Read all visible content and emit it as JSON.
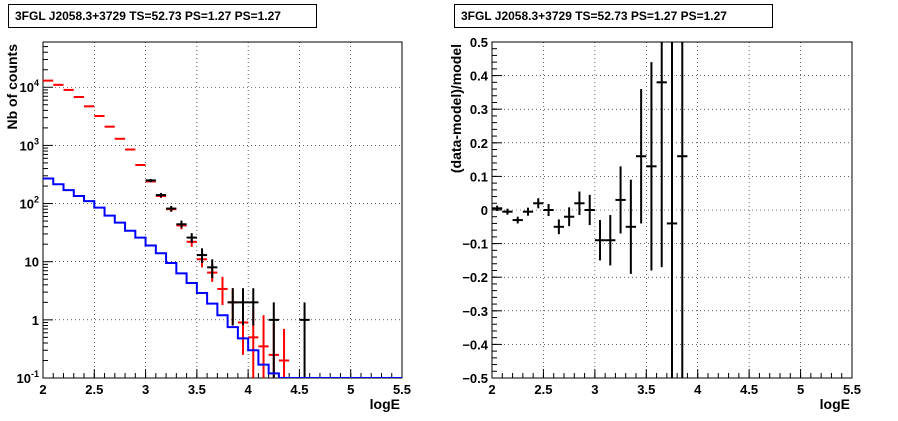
{
  "chart_data": [
    {
      "type": "line",
      "title": "3FGL J2058.3+3729 TS=52.73 PS=1.27 PS=1.27",
      "xlabel": "logE",
      "ylabel": "Nb of counts",
      "xlim": [
        2,
        5.5
      ],
      "ylim": [
        0.1,
        60000
      ],
      "yscale": "log",
      "grid": true,
      "xticks": [
        "2",
        "2.5",
        "3",
        "3.5",
        "4",
        "4.5",
        "5",
        "5.5"
      ],
      "yticks": [
        {
          "value": 0.1,
          "label": "10^-1"
        },
        {
          "value": 1,
          "label": "1"
        },
        {
          "value": 10,
          "label": "10"
        },
        {
          "value": 100,
          "label": "10^2"
        },
        {
          "value": 1000,
          "label": "10^3"
        },
        {
          "value": 10000,
          "label": "10^4"
        }
      ],
      "series": [
        {
          "color": "#ff0000",
          "style": "errorbar",
          "points": [
            {
              "x": 2.05,
              "y": 13000,
              "ylo": 13000,
              "yhi": 13000
            },
            {
              "x": 2.15,
              "y": 11000,
              "ylo": 11000,
              "yhi": 11000
            },
            {
              "x": 2.25,
              "y": 9000,
              "ylo": 9000,
              "yhi": 9000
            },
            {
              "x": 2.35,
              "y": 6800,
              "ylo": 6800,
              "yhi": 6800
            },
            {
              "x": 2.45,
              "y": 4700,
              "ylo": 4700,
              "yhi": 4700
            },
            {
              "x": 2.55,
              "y": 3200,
              "ylo": 3200,
              "yhi": 3200
            },
            {
              "x": 2.65,
              "y": 2100,
              "ylo": 2100,
              "yhi": 2100
            },
            {
              "x": 2.75,
              "y": 1300,
              "ylo": 1300,
              "yhi": 1300
            },
            {
              "x": 2.85,
              "y": 850,
              "ylo": 850,
              "yhi": 850
            },
            {
              "x": 2.95,
              "y": 460,
              "ylo": 460,
              "yhi": 460
            },
            {
              "x": 3.05,
              "y": 240,
              "ylo": 230,
              "yhi": 250
            },
            {
              "x": 3.15,
              "y": 135,
              "ylo": 125,
              "yhi": 145
            },
            {
              "x": 3.25,
              "y": 80,
              "ylo": 72,
              "yhi": 88
            },
            {
              "x": 3.35,
              "y": 42,
              "ylo": 36,
              "yhi": 48
            },
            {
              "x": 3.45,
              "y": 22,
              "ylo": 18,
              "yhi": 27
            },
            {
              "x": 3.55,
              "y": 11,
              "ylo": 8,
              "yhi": 14
            },
            {
              "x": 3.65,
              "y": 6.5,
              "ylo": 4.5,
              "yhi": 9
            },
            {
              "x": 3.75,
              "y": 3.4,
              "ylo": 1.8,
              "yhi": 5.5
            },
            {
              "x": 3.85,
              "y": 2,
              "ylo": 0.8,
              "yhi": 3.5
            },
            {
              "x": 3.95,
              "y": 0.9,
              "ylo": 0.25,
              "yhi": 2.5
            },
            {
              "x": 4.05,
              "y": 0.5,
              "ylo": 0.1,
              "yhi": 1.5
            },
            {
              "x": 4.15,
              "y": 0.35,
              "ylo": 0.1,
              "yhi": 1.2
            },
            {
              "x": 4.25,
              "y": 0.25,
              "ylo": 0.1,
              "yhi": 0.9
            },
            {
              "x": 4.35,
              "y": 0.2,
              "ylo": 0.1,
              "yhi": 0.7
            }
          ]
        },
        {
          "color": "#000000",
          "style": "errorbar",
          "points": [
            {
              "x": 3.05,
              "y": 250,
              "ylo": 235,
              "yhi": 265
            },
            {
              "x": 3.15,
              "y": 140,
              "ylo": 128,
              "yhi": 152
            },
            {
              "x": 3.25,
              "y": 82,
              "ylo": 73,
              "yhi": 91
            },
            {
              "x": 3.35,
              "y": 44,
              "ylo": 38,
              "yhi": 51
            },
            {
              "x": 3.45,
              "y": 26,
              "ylo": 21,
              "yhi": 31
            },
            {
              "x": 3.55,
              "y": 13,
              "ylo": 9.5,
              "yhi": 17
            },
            {
              "x": 3.65,
              "y": 8,
              "ylo": 5.2,
              "yhi": 11
            },
            {
              "x": 3.85,
              "y": 2,
              "ylo": 0.8,
              "yhi": 3.5
            },
            {
              "x": 3.95,
              "y": 2,
              "ylo": 0.8,
              "yhi": 3.5
            },
            {
              "x": 4.05,
              "y": 2,
              "ylo": 0.8,
              "yhi": 3.5
            },
            {
              "x": 4.25,
              "y": 1,
              "ylo": 0.1,
              "yhi": 2
            },
            {
              "x": 4.55,
              "y": 1,
              "ylo": 0.1,
              "yhi": 2
            }
          ]
        },
        {
          "color": "#0000ff",
          "style": "step",
          "edges": [
            2.0,
            2.1,
            2.2,
            2.3,
            2.4,
            2.5,
            2.6,
            2.7,
            2.8,
            2.9,
            3.0,
            3.1,
            3.2,
            3.3,
            3.4,
            3.5,
            3.6,
            3.7,
            3.8,
            3.9,
            4.0,
            4.1,
            4.2,
            4.3,
            5.5
          ],
          "values": [
            270,
            215,
            170,
            135,
            110,
            85,
            62,
            47,
            34,
            26,
            19,
            14,
            9.5,
            6.3,
            4.3,
            2.9,
            1.9,
            1.2,
            0.75,
            0.48,
            0.3,
            0.17,
            0.12,
            0.1
          ]
        }
      ]
    },
    {
      "type": "scatter",
      "title": "3FGL J2058.3+3729 TS=52.73 PS=1.27 PS=1.27",
      "xlabel": "logE",
      "ylabel": "(data-model)/model",
      "xlim": [
        2,
        5.5
      ],
      "ylim": [
        -0.5,
        0.5
      ],
      "grid": true,
      "xticks": [
        "2",
        "2.5",
        "3",
        "3.5",
        "4",
        "4.5",
        "5",
        "5.5"
      ],
      "yticks": [
        "-0.5",
        "-0.4",
        "-0.3",
        "-0.2",
        "-0.1",
        "0",
        "0.1",
        "0.2",
        "0.3",
        "0.4",
        "0.5"
      ],
      "series": [
        {
          "color": "#000000",
          "style": "errorbar",
          "points": [
            {
              "x": 2.05,
              "y": 0.005,
              "err": 0.008
            },
            {
              "x": 2.15,
              "y": -0.005,
              "err": 0.009
            },
            {
              "x": 2.25,
              "y": -0.03,
              "err": 0.01
            },
            {
              "x": 2.35,
              "y": -0.005,
              "err": 0.012
            },
            {
              "x": 2.45,
              "y": 0.02,
              "err": 0.015
            },
            {
              "x": 2.55,
              "y": 0.0,
              "err": 0.018
            },
            {
              "x": 2.65,
              "y": -0.05,
              "err": 0.022
            },
            {
              "x": 2.75,
              "y": -0.02,
              "err": 0.028
            },
            {
              "x": 2.85,
              "y": 0.02,
              "err": 0.035
            },
            {
              "x": 2.95,
              "y": 0.0,
              "err": 0.045
            },
            {
              "x": 3.05,
              "y": -0.09,
              "err": 0.06
            },
            {
              "x": 3.15,
              "y": -0.09,
              "err": 0.075
            },
            {
              "x": 3.25,
              "y": 0.03,
              "err": 0.1
            },
            {
              "x": 3.35,
              "y": -0.05,
              "err": 0.14
            },
            {
              "x": 3.45,
              "y": 0.16,
              "err": 0.2
            },
            {
              "x": 3.55,
              "y": 0.13,
              "err": 0.31
            },
            {
              "x": 3.65,
              "y": 0.38,
              "err": 0.55
            },
            {
              "x": 3.75,
              "y": -0.04,
              "err": 0.9
            },
            {
              "x": 3.85,
              "y": 0.16,
              "err": 1.0
            }
          ]
        }
      ]
    }
  ]
}
